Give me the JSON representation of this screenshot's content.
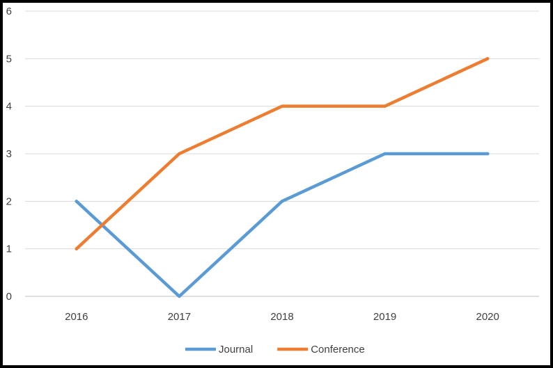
{
  "chart_data": {
    "type": "line",
    "title": "",
    "xlabel": "",
    "ylabel": "",
    "categories": [
      "2016",
      "2017",
      "2018",
      "2019",
      "2020"
    ],
    "ylim": [
      0,
      6
    ],
    "yticks": [
      0,
      1,
      2,
      3,
      4,
      5,
      6
    ],
    "grid": true,
    "legend_position": "bottom",
    "series": [
      {
        "name": "Journal",
        "values": [
          2,
          0,
          2,
          3,
          3
        ],
        "color": "#5b9bd5"
      },
      {
        "name": "Conference",
        "values": [
          1,
          3,
          4,
          4,
          5
        ],
        "color": "#ed7d31"
      }
    ]
  }
}
